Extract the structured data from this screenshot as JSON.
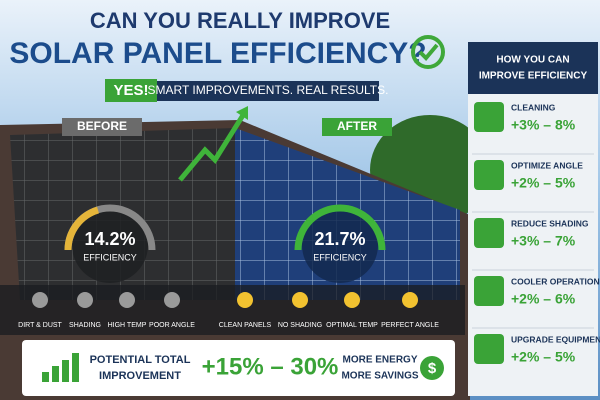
{
  "header": {
    "title_line1": "CAN YOU REALLY IMPROVE",
    "title_line2": "SOLAR PANEL EFFICIENCY?",
    "yes": "YES!",
    "tagline": "SMART IMPROVEMENTS. REAL RESULTS."
  },
  "before": {
    "label": "BEFORE",
    "value": "14.2%",
    "caption": "EFFICIENCY",
    "factors": [
      "DIRT & DUST",
      "SHADING",
      "HIGH TEMP",
      "POOR ANGLE"
    ]
  },
  "after": {
    "label": "AFTER",
    "value": "21.7%",
    "caption": "EFFICIENCY",
    "factors": [
      "CLEAN PANELS",
      "NO SHADING",
      "OPTIMAL TEMP",
      "PERFECT ANGLE"
    ]
  },
  "sidebar": {
    "title": [
      "HOW YOU CAN",
      "IMPROVE EFFICIENCY"
    ],
    "items": [
      {
        "label": "CLEANING",
        "range": "+3% – 8%"
      },
      {
        "label": "OPTIMIZE ANGLE",
        "range": "+2% – 5%"
      },
      {
        "label": "REDUCE SHADING",
        "range": "+3% – 7%"
      },
      {
        "label": "COOLER OPERATION",
        "range": "+2% – 6%"
      },
      {
        "label": "UPGRADE EQUIPMENT",
        "range": "+2% – 5%"
      }
    ]
  },
  "footer": {
    "label": [
      "POTENTIAL TOTAL",
      "IMPROVEMENT"
    ],
    "range": "+15% – 30%",
    "benefits": [
      "MORE ENERGY",
      "MORE SAVINGS"
    ],
    "symbol": "$"
  }
}
